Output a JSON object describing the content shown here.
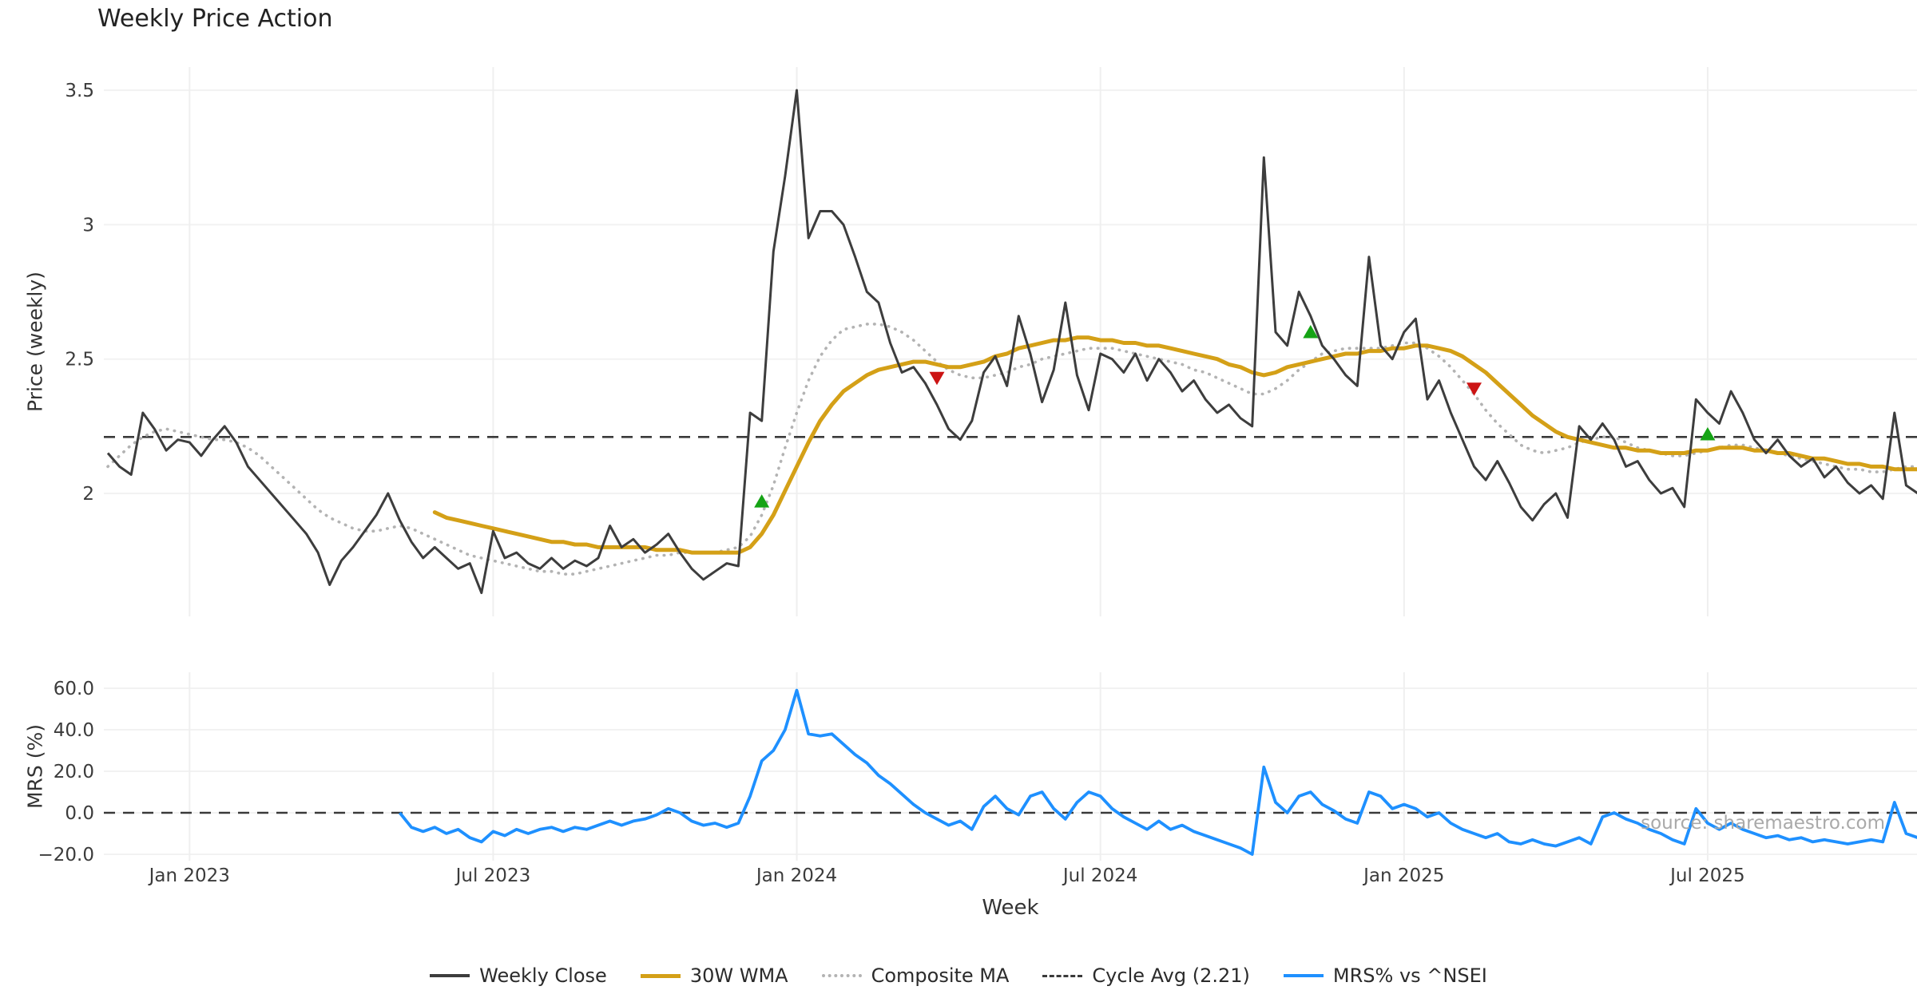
{
  "title": "Weekly Price Action",
  "source_watermark": "source: sharemaestro.com",
  "colors": {
    "weekly_close": "#3d3d3d",
    "wma_30w": "#d4a017",
    "composite_ma": "#b3b3b3",
    "cycle_avg": "#3a3a3a",
    "mrs": "#1e90ff",
    "buy_marker": "#15a315",
    "sell_marker": "#cc1414",
    "grid_vertical": "#efefef",
    "grid_horizontal": "#f2f2f2"
  },
  "legend": {
    "weekly_close": "Weekly Close",
    "wma_30w": "30W WMA",
    "composite_ma": "Composite MA",
    "cycle_avg": "Cycle Avg (2.21)",
    "mrs": "MRS% vs ^NSEI"
  },
  "chart_data": {
    "type": "line",
    "title": "Weekly Price Action",
    "x_axis": {
      "label": "Week",
      "week_domain": [
        0,
        155
      ],
      "ticks": [
        {
          "label": "Jan 2023",
          "week": 7
        },
        {
          "label": "Jul 2023",
          "week": 33
        },
        {
          "label": "Jan 2024",
          "week": 59
        },
        {
          "label": "Jul 2024",
          "week": 85
        },
        {
          "label": "Jan 2025",
          "week": 111
        },
        {
          "label": "Jul 2025",
          "week": 137
        }
      ]
    },
    "panels": {
      "price": {
        "ylabel": "Price (weekly)",
        "ylim": [
          1.54,
          3.59
        ],
        "yticks": [
          {
            "label": "3.5",
            "value": 3.5
          },
          {
            "label": "3",
            "value": 3
          },
          {
            "label": "2.5",
            "value": 2.5
          },
          {
            "label": "2",
            "value": 2
          }
        ],
        "cycle_avg": 2.21
      },
      "mrs": {
        "ylabel": "MRS (%)",
        "ylim": [
          -23,
          67
        ],
        "yticks": [
          {
            "label": "60.0",
            "value": 60
          },
          {
            "label": "40.0",
            "value": 40
          },
          {
            "label": "20.0",
            "value": 20
          },
          {
            "label": "0.0",
            "value": 0
          },
          {
            "label": "−20.0",
            "value": -20
          }
        ],
        "zero_line": 0
      }
    },
    "series": {
      "weekly_close": [
        2.15,
        2.1,
        2.07,
        2.3,
        2.24,
        2.16,
        2.2,
        2.19,
        2.14,
        2.2,
        2.25,
        2.19,
        2.1,
        2.05,
        2.0,
        1.95,
        1.9,
        1.85,
        1.78,
        1.66,
        1.75,
        1.8,
        1.86,
        1.92,
        2.0,
        1.9,
        1.82,
        1.76,
        1.8,
        1.76,
        1.72,
        1.74,
        1.63,
        1.86,
        1.76,
        1.78,
        1.74,
        1.72,
        1.76,
        1.72,
        1.75,
        1.73,
        1.76,
        1.88,
        1.8,
        1.83,
        1.78,
        1.81,
        1.85,
        1.78,
        1.72,
        1.68,
        1.71,
        1.74,
        1.73,
        2.3,
        2.27,
        2.9,
        3.18,
        3.5,
        2.95,
        3.05,
        3.05,
        3.0,
        2.88,
        2.75,
        2.71,
        2.56,
        2.45,
        2.47,
        2.41,
        2.33,
        2.24,
        2.2,
        2.27,
        2.45,
        2.51,
        2.4,
        2.66,
        2.52,
        2.34,
        2.46,
        2.71,
        2.44,
        2.31,
        2.52,
        2.5,
        2.45,
        2.52,
        2.42,
        2.5,
        2.45,
        2.38,
        2.42,
        2.35,
        2.3,
        2.33,
        2.28,
        2.25,
        3.25,
        2.6,
        2.55,
        2.75,
        2.66,
        2.55,
        2.5,
        2.44,
        2.4,
        2.88,
        2.55,
        2.5,
        2.6,
        2.65,
        2.35,
        2.42,
        2.3,
        2.2,
        2.1,
        2.05,
        2.12,
        2.04,
        1.95,
        1.9,
        1.96,
        2.0,
        1.91,
        2.25,
        2.2,
        2.26,
        2.2,
        2.1,
        2.12,
        2.05,
        2.0,
        2.02,
        1.95,
        2.35,
        2.3,
        2.26,
        2.38,
        2.3,
        2.2,
        2.15,
        2.2,
        2.14,
        2.1,
        2.13,
        2.06,
        2.1,
        2.04,
        2.0,
        2.03,
        1.98,
        2.3,
        2.03,
        2.0
      ],
      "wma_30w": [
        null,
        null,
        null,
        null,
        null,
        null,
        null,
        null,
        null,
        null,
        null,
        null,
        null,
        null,
        null,
        null,
        null,
        null,
        null,
        null,
        null,
        null,
        null,
        null,
        null,
        null,
        null,
        null,
        1.93,
        1.91,
        1.9,
        1.89,
        1.88,
        1.87,
        1.86,
        1.85,
        1.84,
        1.83,
        1.82,
        1.82,
        1.81,
        1.81,
        1.8,
        1.8,
        1.8,
        1.8,
        1.8,
        1.79,
        1.79,
        1.79,
        1.78,
        1.78,
        1.78,
        1.78,
        1.78,
        1.8,
        1.85,
        1.92,
        2.01,
        2.1,
        2.19,
        2.27,
        2.33,
        2.38,
        2.41,
        2.44,
        2.46,
        2.47,
        2.48,
        2.49,
        2.49,
        2.48,
        2.47,
        2.47,
        2.48,
        2.49,
        2.51,
        2.52,
        2.54,
        2.55,
        2.56,
        2.57,
        2.57,
        2.58,
        2.58,
        2.57,
        2.57,
        2.56,
        2.56,
        2.55,
        2.55,
        2.54,
        2.53,
        2.52,
        2.51,
        2.5,
        2.48,
        2.47,
        2.45,
        2.44,
        2.45,
        2.47,
        2.48,
        2.49,
        2.5,
        2.51,
        2.52,
        2.52,
        2.53,
        2.53,
        2.54,
        2.54,
        2.55,
        2.55,
        2.54,
        2.53,
        2.51,
        2.48,
        2.45,
        2.41,
        2.37,
        2.33,
        2.29,
        2.26,
        2.23,
        2.21,
        2.2,
        2.19,
        2.18,
        2.17,
        2.17,
        2.16,
        2.16,
        2.15,
        2.15,
        2.15,
        2.16,
        2.16,
        2.17,
        2.17,
        2.17,
        2.16,
        2.16,
        2.15,
        2.15,
        2.14,
        2.13,
        2.13,
        2.12,
        2.11,
        2.11,
        2.1,
        2.1,
        2.09,
        2.09,
        2.09
      ],
      "composite_ma": [
        2.1,
        2.14,
        2.18,
        2.21,
        2.23,
        2.24,
        2.23,
        2.22,
        2.21,
        2.2,
        2.2,
        2.19,
        2.17,
        2.14,
        2.1,
        2.06,
        2.02,
        1.98,
        1.94,
        1.91,
        1.89,
        1.87,
        1.86,
        1.86,
        1.87,
        1.88,
        1.87,
        1.85,
        1.83,
        1.81,
        1.79,
        1.77,
        1.76,
        1.75,
        1.74,
        1.73,
        1.72,
        1.71,
        1.71,
        1.7,
        1.7,
        1.71,
        1.72,
        1.73,
        1.74,
        1.75,
        1.76,
        1.77,
        1.77,
        1.78,
        1.78,
        1.78,
        1.78,
        1.79,
        1.8,
        1.84,
        1.92,
        2.03,
        2.17,
        2.3,
        2.42,
        2.51,
        2.57,
        2.61,
        2.62,
        2.63,
        2.63,
        2.62,
        2.6,
        2.57,
        2.53,
        2.49,
        2.46,
        2.44,
        2.43,
        2.43,
        2.44,
        2.45,
        2.47,
        2.48,
        2.5,
        2.51,
        2.52,
        2.53,
        2.54,
        2.54,
        2.54,
        2.53,
        2.52,
        2.51,
        2.5,
        2.49,
        2.48,
        2.46,
        2.45,
        2.43,
        2.41,
        2.39,
        2.37,
        2.37,
        2.39,
        2.42,
        2.46,
        2.49,
        2.52,
        2.53,
        2.54,
        2.54,
        2.54,
        2.54,
        2.55,
        2.56,
        2.56,
        2.54,
        2.51,
        2.47,
        2.42,
        2.37,
        2.31,
        2.26,
        2.22,
        2.18,
        2.16,
        2.15,
        2.16,
        2.17,
        2.19,
        2.2,
        2.21,
        2.21,
        2.19,
        2.17,
        2.16,
        2.15,
        2.14,
        2.14,
        2.15,
        2.16,
        2.17,
        2.18,
        2.18,
        2.17,
        2.16,
        2.15,
        2.14,
        2.13,
        2.12,
        2.11,
        2.1,
        2.09,
        2.09,
        2.08,
        2.08,
        2.09,
        2.1,
        2.1
      ],
      "mrs_pct": [
        null,
        null,
        null,
        null,
        null,
        null,
        null,
        null,
        null,
        null,
        null,
        null,
        null,
        null,
        null,
        null,
        null,
        null,
        null,
        null,
        null,
        null,
        null,
        null,
        null,
        0,
        -7,
        -9,
        -7,
        -10,
        -8,
        -12,
        -14,
        -9,
        -11,
        -8,
        -10,
        -8,
        -7,
        -9,
        -7,
        -8,
        -6,
        -4,
        -6,
        -4,
        -3,
        -1,
        2,
        0,
        -4,
        -6,
        -5,
        -7,
        -5,
        8,
        25,
        30,
        40,
        59,
        38,
        37,
        38,
        33,
        28,
        24,
        18,
        14,
        9,
        4,
        0,
        -3,
        -6,
        -4,
        -8,
        3,
        8,
        2,
        -1,
        8,
        10,
        2,
        -3,
        5,
        10,
        8,
        2,
        -2,
        -5,
        -8,
        -4,
        -8,
        -6,
        -9,
        -11,
        -13,
        -15,
        -17,
        -20,
        22,
        5,
        0,
        8,
        10,
        4,
        1,
        -3,
        -5,
        10,
        8,
        2,
        4,
        2,
        -2,
        0,
        -5,
        -8,
        -10,
        -12,
        -10,
        -14,
        -15,
        -13,
        -15,
        -16,
        -14,
        -12,
        -15,
        -2,
        0,
        -3,
        -5,
        -8,
        -10,
        -13,
        -15,
        2,
        -5,
        -8,
        -5,
        -8,
        -10,
        -12,
        -11,
        -13,
        -12,
        -14,
        -13,
        -14,
        -15,
        -14,
        -13,
        -14,
        5,
        -10,
        -12
      ]
    },
    "signals": {
      "buy": [
        {
          "week": 56,
          "price": 1.97
        },
        {
          "week": 103,
          "price": 2.6
        },
        {
          "week": 137,
          "price": 2.22
        }
      ],
      "sell": [
        {
          "week": 71,
          "price": 2.43
        },
        {
          "week": 117,
          "price": 2.39
        }
      ]
    }
  }
}
